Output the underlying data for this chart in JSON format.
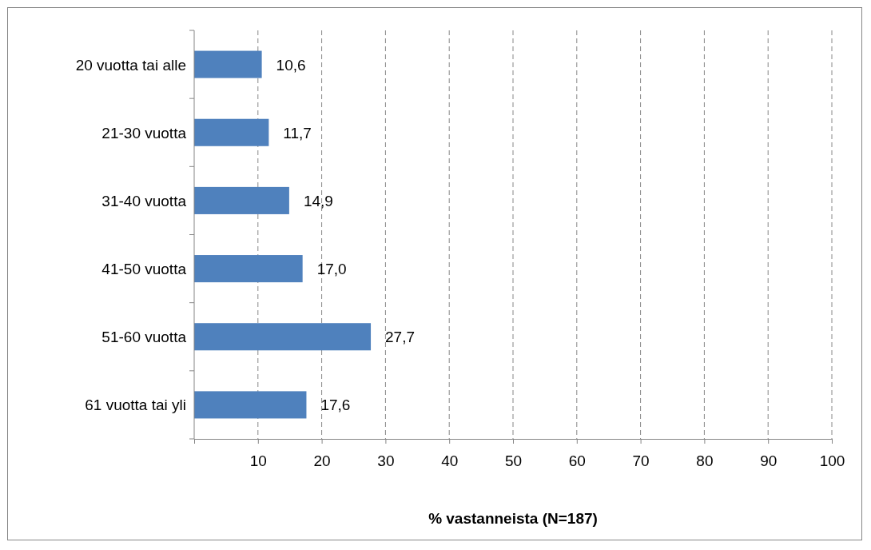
{
  "chart_data": {
    "type": "bar",
    "orientation": "horizontal",
    "xlabel": "% vastanneista (N=187)",
    "categories": [
      "20 vuotta tai alle",
      "21-30 vuotta",
      "31-40 vuotta",
      "41-50 vuotta",
      "51-60 vuotta",
      "61 vuotta tai yli"
    ],
    "values": [
      10.6,
      11.7,
      14.9,
      17.0,
      27.7,
      17.6
    ],
    "value_labels": [
      "10,6",
      "11,7",
      "14,9",
      "17,0",
      "27,7",
      "17,6"
    ],
    "color": "#4f81bd",
    "xlim": [
      0,
      100
    ],
    "xticks": [
      {
        "value": 0,
        "label": null
      },
      10,
      20,
      30,
      40,
      50,
      60,
      70,
      80,
      90,
      100
    ],
    "grid": "x",
    "line_style": "dashed"
  }
}
